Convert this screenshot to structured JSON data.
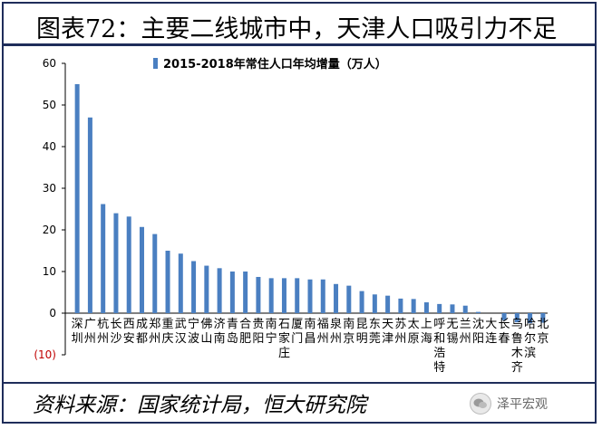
{
  "title": "图表72：主要二线城市中，天津人口吸引力不足",
  "source": "资料来源：国家统计局，恒大研究院",
  "watermark": {
    "text": "泽平宏观",
    "icon": "wechat-icon"
  },
  "colors": {
    "bar": "#4a7fc1",
    "frame": "#1f2d5a",
    "negative_tick": "#c00000"
  },
  "chart_data": {
    "type": "bar",
    "legend": {
      "label": "2015-2018年常住人口年均增量（万人）",
      "position": "top"
    },
    "categories": [
      "深圳",
      "广州",
      "杭州",
      "长沙",
      "西安",
      "成都",
      "郑州",
      "重庆",
      "武汉",
      "宁波",
      "佛山",
      "济南",
      "青岛",
      "合肥",
      "贵阳",
      "南宁",
      "石家庄",
      "厦门",
      "南昌",
      "福州",
      "泉州",
      "南京",
      "昆明",
      "东莞",
      "天津",
      "苏州",
      "太原",
      "上海",
      "呼和浩特",
      "无锡",
      "兰州",
      "沈阳",
      "大连",
      "长春",
      "乌鲁木齐",
      "哈尔滨",
      "北京"
    ],
    "values": [
      55,
      47,
      26.2,
      24,
      23.2,
      20.7,
      19,
      15,
      14.3,
      12.5,
      11.4,
      10.8,
      10,
      10,
      8.7,
      8.4,
      8.4,
      8.4,
      8.1,
      8.1,
      7,
      6.6,
      5.3,
      4.5,
      4.2,
      3.5,
      3.4,
      2.6,
      2.2,
      2.1,
      1.8,
      0.3,
      0,
      -1.7,
      -2.2,
      -2.4,
      -2.3
    ],
    "ylim": [
      -10,
      60
    ],
    "yticks": [
      "(10)",
      "0",
      "10",
      "20",
      "30",
      "40",
      "50",
      "60"
    ],
    "grid": false
  }
}
